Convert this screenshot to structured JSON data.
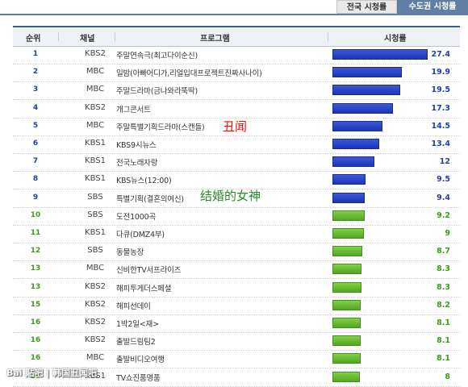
{
  "tabs": {
    "national": "전국 시청률",
    "capital": "수도권 시청률"
  },
  "header": {
    "rank": "순위",
    "channel": "채널",
    "program": "프로그램",
    "rating": "시청률"
  },
  "max_rating": 27.4,
  "colors": {
    "blue_bar": "#2a45c9",
    "green_bar": "#6cc237",
    "tab_active": "#5f7fa3"
  },
  "rows": [
    {
      "rank": "1",
      "channel": "KBS2",
      "program": "주말연속극(최고다이순신)",
      "rating": "27.4",
      "value": 27.4,
      "color": "blue"
    },
    {
      "rank": "2",
      "channel": "MBC",
      "program": "일밤(아빠어디가,리얼입대프로젝트진짜사나이)",
      "rating": "19.9",
      "value": 19.9,
      "color": "blue"
    },
    {
      "rank": "3",
      "channel": "MBC",
      "program": "주말드라마(금나와라뚝딱)",
      "rating": "19.5",
      "value": 19.5,
      "color": "blue"
    },
    {
      "rank": "4",
      "channel": "KBS2",
      "program": "개그콘서트",
      "rating": "17.3",
      "value": 17.3,
      "color": "blue"
    },
    {
      "rank": "5",
      "channel": "MBC",
      "program": "주말특별기획드라마(스캔들)",
      "rating": "14.5",
      "value": 14.5,
      "color": "blue"
    },
    {
      "rank": "6",
      "channel": "KBS1",
      "program": "KBS9시뉴스",
      "rating": "13.4",
      "value": 13.4,
      "color": "blue"
    },
    {
      "rank": "7",
      "channel": "KBS1",
      "program": "전국노래자랑",
      "rating": "12",
      "value": 12,
      "color": "blue"
    },
    {
      "rank": "8",
      "channel": "KBS1",
      "program": "KBS뉴스(12:00)",
      "rating": "9.5",
      "value": 9.5,
      "color": "blue"
    },
    {
      "rank": "9",
      "channel": "SBS",
      "program": "특별기획(결혼의여신)",
      "rating": "9.4",
      "value": 9.4,
      "color": "blue"
    },
    {
      "rank": "10",
      "channel": "SBS",
      "program": "도전1000곡",
      "rating": "9.2",
      "value": 9.2,
      "color": "green"
    },
    {
      "rank": "11",
      "channel": "KBS1",
      "program": "다큐(DMZ4부)",
      "rating": "9",
      "value": 9,
      "color": "green"
    },
    {
      "rank": "12",
      "channel": "SBS",
      "program": "동물농장",
      "rating": "8.7",
      "value": 8.7,
      "color": "green"
    },
    {
      "rank": "13",
      "channel": "MBC",
      "program": "신비한TV서프라이즈",
      "rating": "8.3",
      "value": 8.3,
      "color": "green"
    },
    {
      "rank": "13",
      "channel": "KBS2",
      "program": "해피투게더스페셜",
      "rating": "8.3",
      "value": 8.3,
      "color": "green"
    },
    {
      "rank": "15",
      "channel": "KBS2",
      "program": "해피선데이",
      "rating": "8.2",
      "value": 8.2,
      "color": "green"
    },
    {
      "rank": "16",
      "channel": "KBS2",
      "program": "1박2일<재>",
      "rating": "8.1",
      "value": 8.1,
      "color": "green"
    },
    {
      "rank": "16",
      "channel": "KBS2",
      "program": "출발드림팀2",
      "rating": "8.1",
      "value": 8.1,
      "color": "green"
    },
    {
      "rank": "16",
      "channel": "MBC",
      "program": "출발비디오여행",
      "rating": "8.1",
      "value": 8.1,
      "color": "green"
    },
    {
      "rank": "19",
      "channel": "KBS1",
      "program": "TV쇼진품명품",
      "rating": "8",
      "value": 8,
      "color": "green"
    }
  ],
  "annotations": {
    "scandal": "丑闻",
    "marriage_goddess": "结婚的女神"
  },
  "watermark": "Bai 贴吧 | 韩国丑闻吧"
}
